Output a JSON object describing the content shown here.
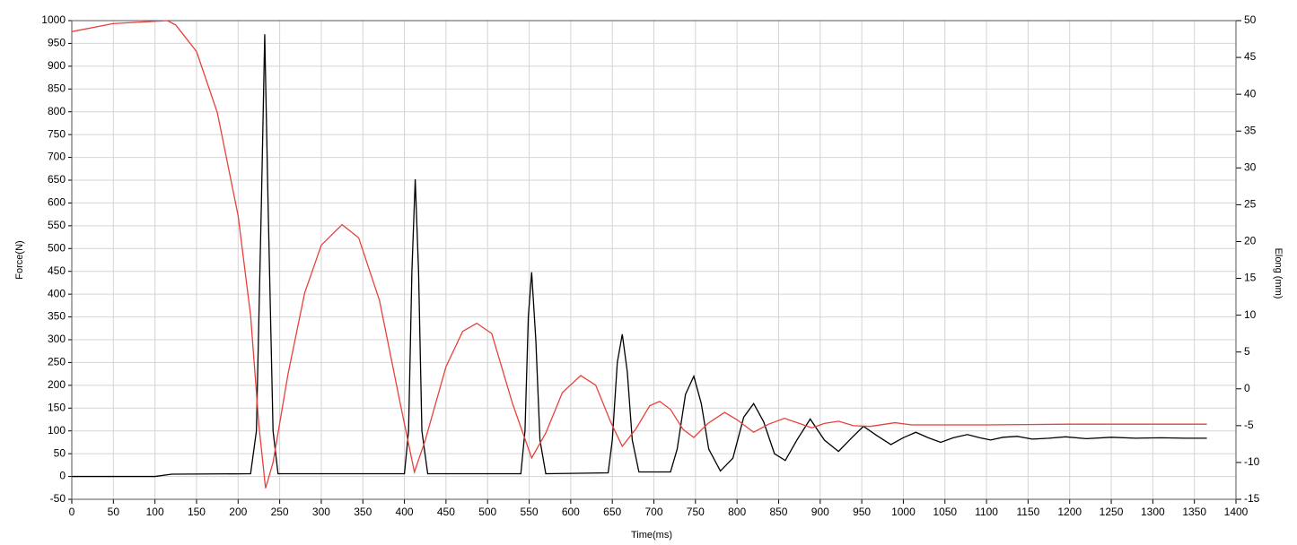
{
  "chart_data": {
    "type": "line",
    "x_label": "Time(ms)",
    "y_label": "Force(N)",
    "y2_label": "Elong (mm)",
    "xlim": [
      0,
      1400
    ],
    "xticks": [
      0,
      50,
      100,
      150,
      200,
      250,
      300,
      350,
      400,
      450,
      500,
      550,
      600,
      650,
      700,
      750,
      800,
      850,
      900,
      950,
      1000,
      1050,
      1100,
      1150,
      1200,
      1250,
      1300,
      1350,
      1400
    ],
    "ylim": [
      -50,
      1000
    ],
    "yticks": [
      -50,
      0,
      50,
      100,
      150,
      200,
      250,
      300,
      350,
      400,
      450,
      500,
      550,
      600,
      650,
      700,
      750,
      800,
      850,
      900,
      950,
      1000
    ],
    "y2lim": [
      -15,
      50
    ],
    "y2ticks": [
      -15,
      -10,
      -5,
      0,
      5,
      10,
      15,
      20,
      25,
      30,
      35,
      40,
      45,
      50
    ],
    "grid": true,
    "series": [
      {
        "color": "#000000",
        "x": [
          0,
          100,
          120,
          215,
          222,
          228,
          232,
          236,
          242,
          248,
          400,
          405,
          409,
          413,
          417,
          421,
          428,
          540,
          545,
          549,
          553,
          558,
          563,
          570,
          645,
          650,
          656,
          662,
          668,
          674,
          682,
          720,
          728,
          738,
          748,
          757,
          766,
          780,
          795,
          808,
          820,
          832,
          845,
          858,
          872,
          888,
          905,
          922,
          938,
          952,
          968,
          985,
          1000,
          1015,
          1030,
          1045,
          1060,
          1077,
          1092,
          1105,
          1120,
          1137,
          1155,
          1175,
          1195,
          1220,
          1250,
          1280,
          1310,
          1340,
          1365
        ],
        "values": [
          0,
          0,
          5,
          6,
          100,
          600,
          970,
          600,
          100,
          6,
          6,
          100,
          450,
          652,
          450,
          100,
          6,
          6,
          100,
          350,
          448,
          300,
          80,
          6,
          8,
          80,
          250,
          312,
          230,
          80,
          10,
          10,
          60,
          180,
          220,
          160,
          60,
          12,
          40,
          130,
          160,
          120,
          50,
          35,
          80,
          126,
          80,
          55,
          85,
          110,
          90,
          70,
          85,
          97,
          85,
          75,
          85,
          92,
          85,
          80,
          86,
          88,
          82,
          84,
          87,
          83,
          86,
          84,
          85,
          84,
          84
        ]
      },
      {
        "color": "#e8413a",
        "axis": "y2",
        "x": [
          0,
          50,
          115,
          125,
          150,
          175,
          200,
          215,
          225,
          233,
          242,
          260,
          280,
          300,
          325,
          345,
          370,
          395,
          412,
          425,
          450,
          470,
          487,
          505,
          530,
          553,
          570,
          590,
          612,
          630,
          648,
          662,
          678,
          695,
          707,
          720,
          735,
          748,
          765,
          785,
          800,
          820,
          838,
          857,
          875,
          890,
          905,
          922,
          940,
          960,
          990,
          1010,
          1100,
          1200,
          1365
        ],
        "values": [
          48.5,
          49.6,
          50,
          49.4,
          45.8,
          37.5,
          23.5,
          10,
          -5,
          -13.5,
          -10,
          2,
          13,
          19.5,
          22.3,
          20.5,
          12,
          -2,
          -11.3,
          -7,
          3,
          7.8,
          8.9,
          7.5,
          -2,
          -9.4,
          -6,
          -0.5,
          1.8,
          0.5,
          -4.5,
          -7.8,
          -5.5,
          -2.3,
          -1.7,
          -2.8,
          -5.5,
          -6.6,
          -4.7,
          -3.2,
          -4.2,
          -5.9,
          -4.8,
          -4.0,
          -4.7,
          -5.3,
          -4.7,
          -4.4,
          -5.0,
          -5.1,
          -4.6,
          -4.9,
          -4.9,
          -4.8,
          -4.8
        ]
      }
    ]
  }
}
